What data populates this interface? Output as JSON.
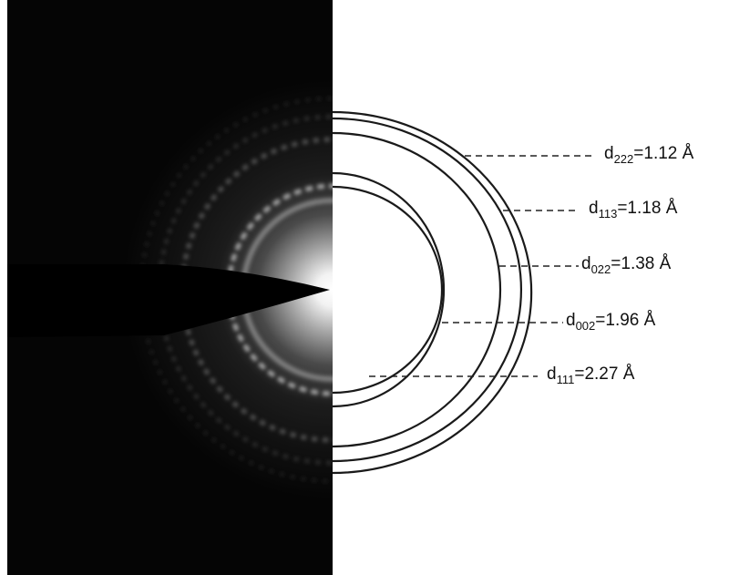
{
  "figure": {
    "background": "#ffffff",
    "pattern_color": "#000000",
    "ring_stroke": "#1a1a1a",
    "rings": [
      {
        "id": "d222",
        "sub": "222",
        "value": "1.12",
        "unit": "Å"
      },
      {
        "id": "d113",
        "sub": "113",
        "value": "1.18",
        "unit": "Å"
      },
      {
        "id": "d022",
        "sub": "022",
        "value": "1.38",
        "unit": "Å"
      },
      {
        "id": "d002",
        "sub": "002",
        "value": "1.96",
        "unit": "Å"
      },
      {
        "id": "d111",
        "sub": "111",
        "value": "2.27",
        "unit": "Å"
      }
    ]
  }
}
